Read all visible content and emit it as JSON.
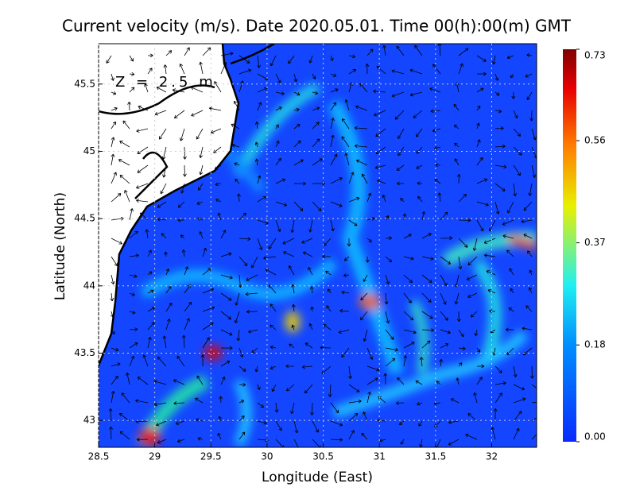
{
  "chart_data": {
    "type": "map",
    "title": "Current velocity (m/s). Date 2020.05.01. Time 00(h):00(m) GMT",
    "annotation": "Z = 2.5 m",
    "x_label": "Longitude (East)",
    "y_label": "Latitude (North)",
    "xlim": [
      28.5,
      32.4
    ],
    "ylim": [
      42.8,
      45.8
    ],
    "xticks": [
      28.5,
      29,
      29.5,
      30,
      30.5,
      31,
      31.5,
      32
    ],
    "yticks": [
      43,
      43.5,
      44,
      44.5,
      45,
      45.5
    ],
    "grid": true,
    "colorbar": {
      "lim": [
        0,
        0.73
      ],
      "ticks": [
        {
          "value": 0,
          "label": "0.00"
        },
        0.18,
        0.37,
        0.56,
        0.73
      ]
    }
  }
}
